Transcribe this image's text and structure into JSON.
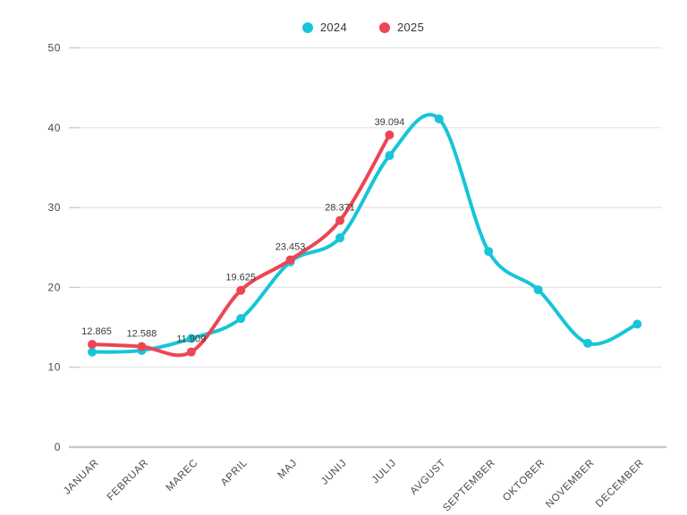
{
  "legend": {
    "items": [
      {
        "label": "2024"
      },
      {
        "label": "2025"
      }
    ]
  },
  "chart_data": {
    "type": "line",
    "categories": [
      "JANUAR",
      "FEBRUAR",
      "MAREC",
      "APRIL",
      "MAJ",
      "JUNIJ",
      "JULIJ",
      "AVGUST",
      "SEPTEMBER",
      "OKTOBER",
      "NOVEMBER",
      "DECEMBER"
    ],
    "series": [
      {
        "name": "2024",
        "color": "#16C5D8",
        "values": [
          11.9,
          12.1,
          13.6,
          16.1,
          23.2,
          26.2,
          36.5,
          41.1,
          24.5,
          19.7,
          13.0,
          15.4
        ],
        "point_labels": null
      },
      {
        "name": "2025",
        "color": "#ED4553",
        "values": [
          12.865,
          12.588,
          11.909,
          19.625,
          23.453,
          28.371,
          39.094
        ],
        "point_labels": [
          "12.865",
          "12.588",
          "11.909",
          "19.625",
          "23.453",
          "28.371",
          "39.094"
        ]
      }
    ],
    "ylabel": "",
    "xlabel": "",
    "title": "",
    "ylim": [
      0,
      50
    ],
    "yticks": [
      0,
      10,
      20,
      30,
      40,
      50
    ],
    "grid": true,
    "legend_position": "top",
    "colors": {
      "grid_line": "#e4e4e4",
      "zero_line": "#c9c9c9",
      "axis_text": "#4a4a4a",
      "data_label_text": "#3a3a3a"
    }
  }
}
